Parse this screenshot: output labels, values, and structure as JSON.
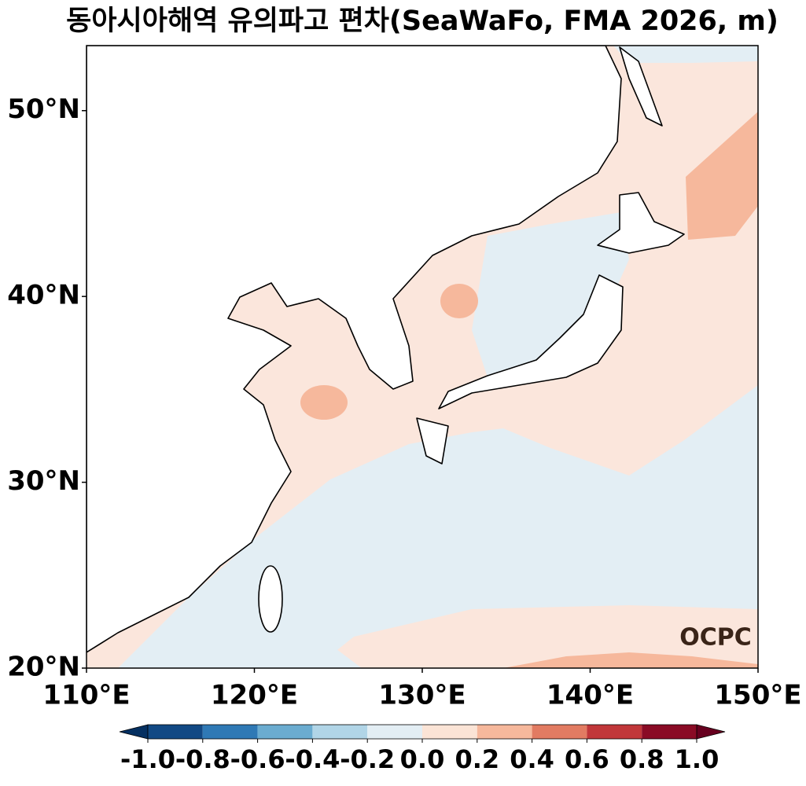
{
  "map": {
    "title": "동아시아해역 유의파고 편차(SeaWaFo, FMA 2026, m)",
    "logo": "OCPC",
    "xlim": [
      110,
      150
    ],
    "ylim": [
      20,
      53.5
    ],
    "xticks": [
      {
        "value": 110,
        "label": "110°E"
      },
      {
        "value": 120,
        "label": "120°E"
      },
      {
        "value": 130,
        "label": "130°E"
      },
      {
        "value": 140,
        "label": "140°E"
      },
      {
        "value": 150,
        "label": "150°E"
      }
    ],
    "yticks": [
      {
        "value": 20,
        "label": "20°N"
      },
      {
        "value": 30,
        "label": "30°N"
      },
      {
        "value": 40,
        "label": "40°N"
      },
      {
        "value": 50,
        "label": "50°N"
      }
    ],
    "colorbar": {
      "levels": [
        {
          "value": -1,
          "label": "-1.0"
        },
        -0.8,
        -0.6,
        -0.4,
        -0.2,
        {
          "value": 0,
          "label": "0.0"
        },
        0.2,
        0.4,
        0.6,
        0.8,
        {
          "value": 1,
          "label": "1.0"
        }
      ],
      "colors": [
        "#124984",
        "#2f79b5",
        "#6bacd0",
        "#b1d5e7",
        "#e3eef4",
        "#fbe4d6",
        "#f6b89c",
        "#e27b62",
        "#c1373a",
        "#8a0b25"
      ],
      "under": "#053061",
      "over": "#67001f"
    }
  }
}
